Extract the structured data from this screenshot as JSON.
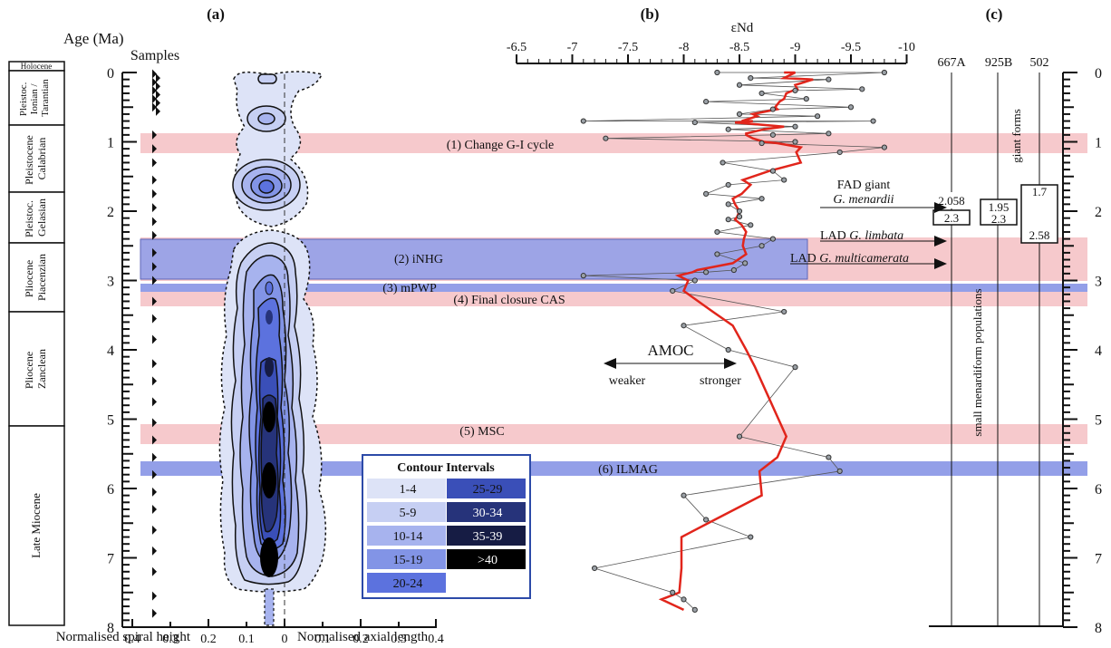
{
  "panels": {
    "a": "(a)",
    "b": "(b)",
    "c": "(c)"
  },
  "age_label": "Age (Ma)",
  "samples_label": "Samples",
  "xlabel_spiral": "Normalised spiral height",
  "xlabel_axial": "Normalised axial length",
  "xticks_spiral": [
    "0.4",
    "0.3",
    "0.2",
    "0.1",
    "0"
  ],
  "xticks_axial": [
    "0.1",
    "0.2",
    "0.3",
    "0.4"
  ],
  "age_ticks": [
    "0",
    "1",
    "2",
    "3",
    "4",
    "5",
    "6",
    "7",
    "8"
  ],
  "end_label": "εNd",
  "end_ticks": [
    "-6.5",
    "-7",
    "-7.5",
    "-8",
    "-8.5",
    "-9",
    "-9.5",
    "-10"
  ],
  "chrono": [
    {
      "label": "Holocene",
      "lines": [
        "Holocene"
      ]
    },
    {
      "label": "Pleistoc. Ionian / Tarantian",
      "lines": [
        "Pleistoc.",
        "Ionian /",
        "Tarantian"
      ]
    },
    {
      "label": "Pleistocene Calabrian",
      "lines": [
        "Pleistocene",
        "Calabrian"
      ]
    },
    {
      "label": "Pleistoc. Gelasian",
      "lines": [
        "Pleistoc.",
        "Gelasian"
      ]
    },
    {
      "label": "Pliocene Piacenzian",
      "lines": [
        "Pliocene",
        "Piacenzian"
      ]
    },
    {
      "label": "Pliocene Zanclean",
      "lines": [
        "Pliocene",
        "Zanclean"
      ]
    },
    {
      "label": "Late Miocene",
      "lines": [
        "Late Miocene"
      ]
    }
  ],
  "events": [
    {
      "label": "(1) Change G-I cycle"
    },
    {
      "label": "(2) iNHG"
    },
    {
      "label": "(3) mPWP"
    },
    {
      "label": "(4) Final closure CAS"
    },
    {
      "label": "(5) MSC"
    },
    {
      "label": "(6) ILMAG"
    }
  ],
  "amoc": {
    "title": "AMOC",
    "weaker": "weaker",
    "stronger": "stronger"
  },
  "legend": {
    "title": "Contour Intervals",
    "items": [
      {
        "label": "1-4",
        "color": "#dde3f7"
      },
      {
        "label": "5-9",
        "color": "#c6cff3"
      },
      {
        "label": "10-14",
        "color": "#a7b3ee"
      },
      {
        "label": "15-19",
        "color": "#8294e6"
      },
      {
        "label": "20-24",
        "color": "#5c72de"
      },
      {
        "label": "25-29",
        "color": "#3a4fb8"
      },
      {
        "label": "30-34",
        "color": "#26337a"
      },
      {
        "label": "35-39",
        "color": "#161c44"
      },
      {
        "label": ">40",
        "color": "#000000"
      }
    ]
  },
  "sites": [
    "667A",
    "925B",
    "502"
  ],
  "fad_title": "FAD giant",
  "fad_species": "G. menardii",
  "lad1_prefix": "LAD ",
  "lad1_species": "G. limbata",
  "lad2_prefix": "LAD ",
  "lad2_species": "G. multicamerata",
  "site_boxes": [
    {
      "site": "667A",
      "upper": "2.058",
      "lower": "2.3"
    },
    {
      "site": "925B",
      "upper": "1.95",
      "lower": "2.3"
    },
    {
      "site": "502",
      "upper": "1.7",
      "lower": "2.58"
    }
  ],
  "giant_label": "giant forms",
  "small_label": "small menardiform populations",
  "colors": {
    "event_pink": "#f6c9cc",
    "event_blue": "#6f7fe0",
    "inhg_blue": "#9da4e6",
    "end_line": "#e1251b"
  },
  "chart_data": {
    "type": "scatter",
    "ylabel": "Age (Ma)",
    "ylim": [
      8,
      0
    ],
    "enD_xlim": [
      -6.5,
      -10
    ],
    "series": [
      {
        "points": [
          [
            0.0,
            -8.3
          ],
          [
            0.0,
            -9.8
          ],
          [
            0.08,
            -8.6
          ],
          [
            0.1,
            -9.3
          ],
          [
            0.18,
            -8.5
          ],
          [
            0.24,
            -9.6
          ],
          [
            0.26,
            -9.0
          ],
          [
            0.3,
            -8.7
          ],
          [
            0.38,
            -9.1
          ],
          [
            0.42,
            -8.2
          ],
          [
            0.5,
            -9.5
          ],
          [
            0.53,
            -8.8
          ],
          [
            0.6,
            -8.5
          ],
          [
            0.63,
            -9.2
          ],
          [
            0.7,
            -7.1
          ],
          [
            0.7,
            -9.7
          ],
          [
            0.72,
            -8.1
          ],
          [
            0.78,
            -9.0
          ],
          [
            0.82,
            -8.4
          ],
          [
            0.88,
            -9.3
          ],
          [
            0.9,
            -8.8
          ],
          [
            0.95,
            -7.3
          ],
          [
            1.0,
            -9.0
          ],
          [
            1.02,
            -8.7
          ],
          [
            1.08,
            -9.8
          ],
          [
            1.15,
            -9.4
          ],
          [
            1.3,
            -8.35
          ],
          [
            1.42,
            -8.8
          ],
          [
            1.55,
            -8.9
          ],
          [
            1.62,
            -8.4
          ],
          [
            1.75,
            -8.2
          ],
          [
            1.82,
            -8.7
          ],
          [
            1.9,
            -8.4
          ],
          [
            2.0,
            -8.5
          ],
          [
            2.08,
            -8.5
          ],
          [
            2.12,
            -8.4
          ],
          [
            2.2,
            -8.6
          ],
          [
            2.3,
            -8.3
          ],
          [
            2.4,
            -8.8
          ],
          [
            2.5,
            -8.7
          ],
          [
            2.62,
            -8.3
          ],
          [
            2.75,
            -8.55
          ],
          [
            2.85,
            -8.45
          ],
          [
            2.88,
            -8.2
          ],
          [
            2.93,
            -7.1
          ],
          [
            3.0,
            -8.1
          ],
          [
            3.15,
            -7.9
          ],
          [
            3.45,
            -8.9
          ],
          [
            3.65,
            -8.0
          ],
          [
            4.0,
            -8.4
          ],
          [
            4.25,
            -9.0
          ],
          [
            5.25,
            -8.5
          ],
          [
            5.55,
            -9.3
          ],
          [
            5.75,
            -9.4
          ],
          [
            6.1,
            -8.0
          ],
          [
            6.45,
            -8.2
          ],
          [
            6.7,
            -8.6
          ],
          [
            7.15,
            -7.2
          ],
          [
            7.5,
            -7.9
          ],
          [
            7.6,
            -8.0
          ],
          [
            7.75,
            -8.1
          ]
        ]
      }
    ]
  }
}
